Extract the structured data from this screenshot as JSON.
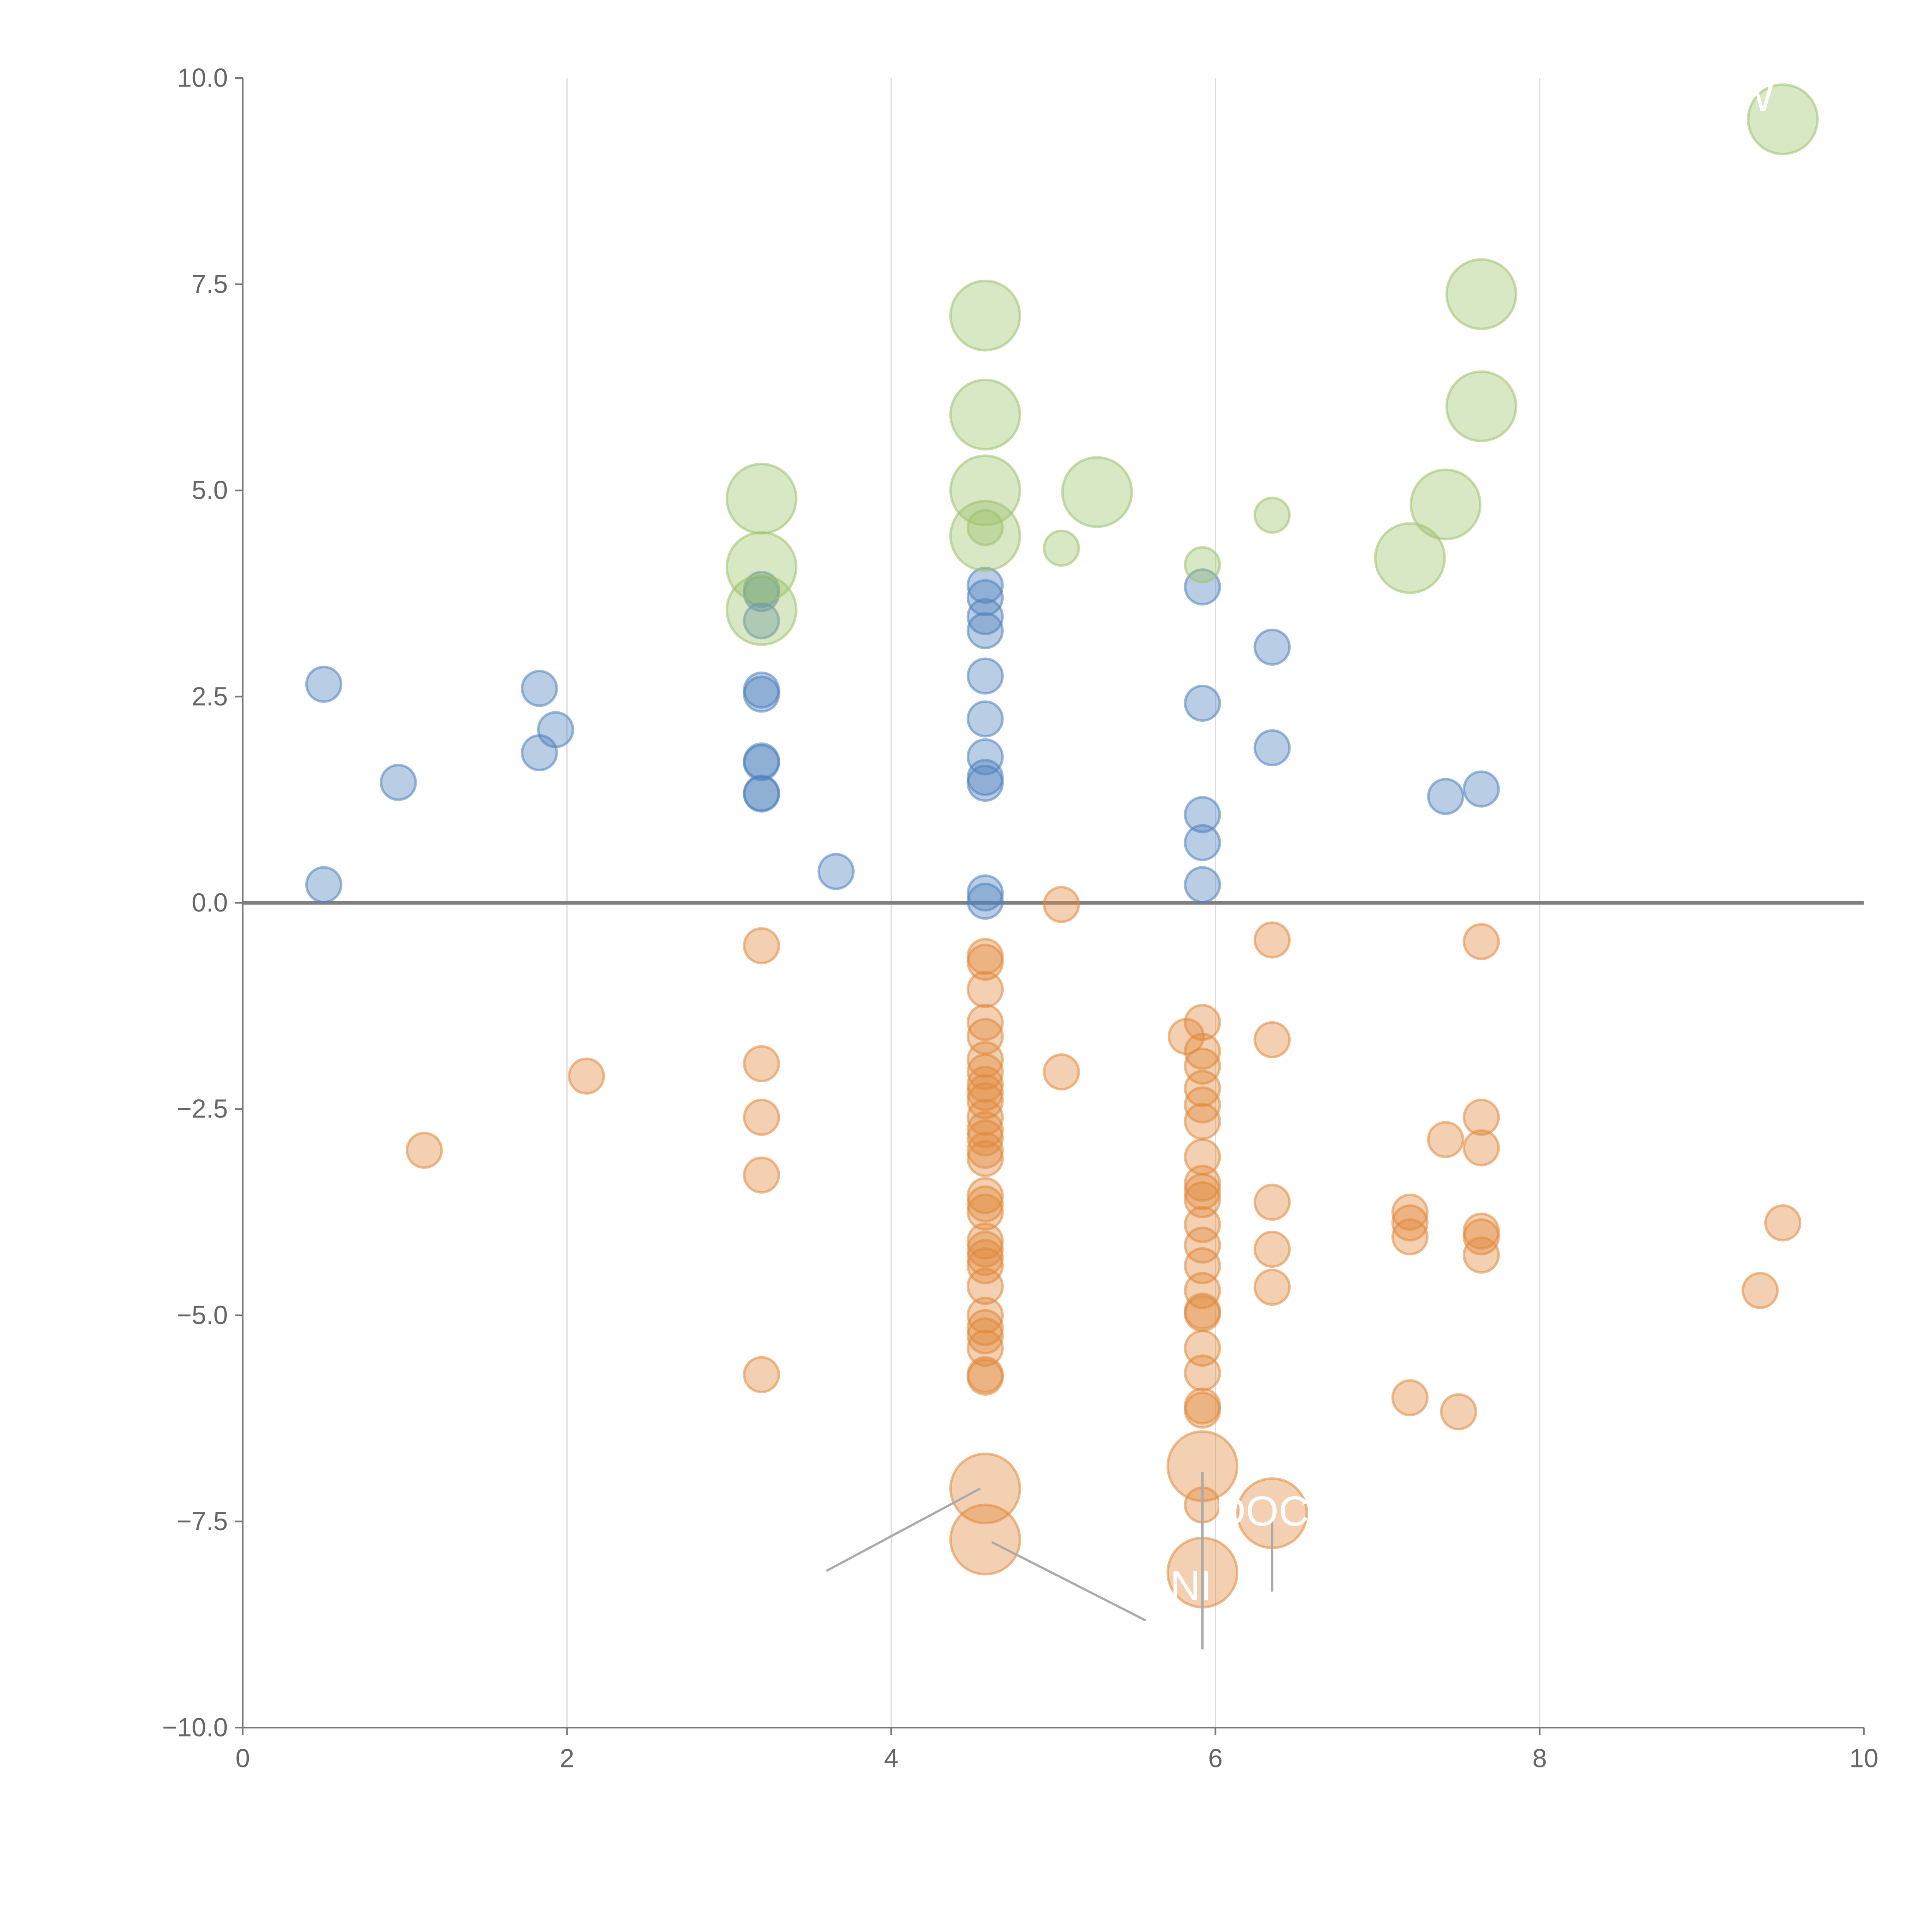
{
  "chart_data": {
    "type": "scatter",
    "title": "",
    "xlabel": "",
    "ylabel": "",
    "xlim": [
      0,
      10
    ],
    "ylim": [
      -10,
      10
    ],
    "grid": {
      "vertical": true,
      "horizontal": false
    },
    "xticks": [
      0,
      2,
      4,
      6,
      8,
      10
    ],
    "yticks": [
      10.0,
      7.5,
      5.0,
      2.5,
      0.0,
      -2.5,
      -5.0,
      -7.5,
      -10.0
    ],
    "xtick_labels": [
      "0",
      "2",
      "4",
      "6",
      "8",
      "10"
    ],
    "ytick_labels": [
      "10.0",
      "7.5",
      "5.0",
      "2.5",
      "0.0",
      "−2.5",
      "−5.0",
      "−7.5",
      "−10.0"
    ],
    "reference_line_y": 0,
    "series": [
      {
        "name": "blue",
        "color": "#4f81bd",
        "points": [
          [
            0.5,
            2.65,
            1
          ],
          [
            0.5,
            0.22,
            1
          ],
          [
            0.96,
            1.46,
            1
          ],
          [
            1.83,
            2.6,
            1
          ],
          [
            1.83,
            1.82,
            1
          ],
          [
            1.93,
            2.1,
            1
          ],
          [
            3.2,
            3.8,
            1
          ],
          [
            3.2,
            3.75,
            1
          ],
          [
            3.2,
            3.42,
            1
          ],
          [
            3.2,
            2.58,
            1
          ],
          [
            3.2,
            2.53,
            1
          ],
          [
            3.2,
            1.72,
            1
          ],
          [
            3.2,
            1.7,
            1
          ],
          [
            3.2,
            1.33,
            1
          ],
          [
            3.2,
            1.32,
            1
          ],
          [
            3.66,
            0.38,
            1
          ],
          [
            4.58,
            3.85,
            1
          ],
          [
            4.58,
            3.7,
            1
          ],
          [
            4.58,
            3.47,
            1
          ],
          [
            4.58,
            3.3,
            1
          ],
          [
            4.58,
            2.75,
            1
          ],
          [
            4.58,
            2.23,
            1
          ],
          [
            4.58,
            1.77,
            1
          ],
          [
            4.58,
            1.52,
            1
          ],
          [
            4.58,
            1.45,
            1
          ],
          [
            4.58,
            0.12,
            1
          ],
          [
            4.58,
            0.02,
            1
          ],
          [
            5.92,
            3.83,
            1
          ],
          [
            5.92,
            2.42,
            1
          ],
          [
            5.92,
            1.07,
            1
          ],
          [
            5.92,
            0.73,
            1
          ],
          [
            5.92,
            0.22,
            1
          ],
          [
            6.35,
            3.1,
            1
          ],
          [
            6.35,
            1.88,
            1
          ],
          [
            7.42,
            1.29,
            1
          ],
          [
            7.64,
            1.38,
            1
          ]
        ]
      },
      {
        "name": "green",
        "color": "#9dc36b",
        "points": [
          [
            3.2,
            4.9,
            4
          ],
          [
            3.2,
            4.07,
            4
          ],
          [
            3.2,
            3.55,
            4
          ],
          [
            4.58,
            7.12,
            4
          ],
          [
            4.58,
            5.92,
            4
          ],
          [
            4.58,
            5.0,
            4
          ],
          [
            4.58,
            4.45,
            4
          ],
          [
            5.27,
            4.98,
            4
          ],
          [
            7.64,
            7.38,
            4
          ],
          [
            7.64,
            6.02,
            4
          ],
          [
            7.42,
            4.83,
            4
          ],
          [
            7.2,
            4.18,
            4
          ],
          [
            9.5,
            9.5,
            4
          ],
          [
            4.58,
            4.55,
            1
          ],
          [
            5.05,
            4.3,
            1
          ],
          [
            5.92,
            4.1,
            1
          ],
          [
            6.35,
            4.7,
            1
          ]
        ]
      },
      {
        "name": "orange",
        "color": "#e0893c",
        "points": [
          [
            1.12,
            -3.0,
            1
          ],
          [
            2.12,
            -2.1,
            1
          ],
          [
            3.2,
            -0.52,
            1
          ],
          [
            3.2,
            -1.95,
            1
          ],
          [
            3.2,
            -2.6,
            1
          ],
          [
            3.2,
            -3.3,
            1
          ],
          [
            3.2,
            -5.72,
            1
          ],
          [
            4.58,
            -0.65,
            1
          ],
          [
            4.58,
            -0.72,
            1
          ],
          [
            4.58,
            -1.05,
            1
          ],
          [
            4.58,
            -1.45,
            1
          ],
          [
            4.58,
            -1.62,
            1
          ],
          [
            4.58,
            -1.9,
            1
          ],
          [
            4.58,
            -2.05,
            1
          ],
          [
            4.58,
            -2.2,
            1
          ],
          [
            4.58,
            -2.3,
            1
          ],
          [
            4.58,
            -2.4,
            1
          ],
          [
            4.58,
            -2.6,
            1
          ],
          [
            4.58,
            -2.75,
            1
          ],
          [
            4.58,
            -2.85,
            1
          ],
          [
            4.58,
            -3.0,
            1
          ],
          [
            4.58,
            -3.1,
            1
          ],
          [
            4.58,
            -3.55,
            1
          ],
          [
            4.58,
            -3.65,
            1
          ],
          [
            4.58,
            -3.75,
            1
          ],
          [
            4.58,
            -4.1,
            1
          ],
          [
            4.58,
            -4.2,
            1
          ],
          [
            4.58,
            -4.3,
            1
          ],
          [
            4.58,
            -4.4,
            1
          ],
          [
            4.58,
            -4.65,
            1
          ],
          [
            4.58,
            -5.0,
            1
          ],
          [
            4.58,
            -5.15,
            1
          ],
          [
            4.58,
            -5.25,
            1
          ],
          [
            4.58,
            -5.4,
            1
          ],
          [
            4.58,
            -5.72,
            1
          ],
          [
            4.58,
            -5.75,
            1
          ],
          [
            5.05,
            -0.02,
            1
          ],
          [
            5.05,
            -2.05,
            1
          ],
          [
            5.82,
            -1.62,
            1
          ],
          [
            5.92,
            -1.45,
            1
          ],
          [
            5.92,
            -1.8,
            1
          ],
          [
            5.92,
            -1.98,
            1
          ],
          [
            5.92,
            -2.25,
            1
          ],
          [
            5.92,
            -2.45,
            1
          ],
          [
            5.92,
            -2.65,
            1
          ],
          [
            5.92,
            -3.08,
            1
          ],
          [
            5.92,
            -3.4,
            1
          ],
          [
            5.92,
            -3.5,
            1
          ],
          [
            5.92,
            -3.6,
            1
          ],
          [
            5.92,
            -3.9,
            1
          ],
          [
            5.92,
            -4.15,
            1
          ],
          [
            5.92,
            -4.4,
            1
          ],
          [
            5.92,
            -4.7,
            1
          ],
          [
            5.92,
            -4.95,
            1
          ],
          [
            5.92,
            -4.98,
            1
          ],
          [
            5.92,
            -5.4,
            1
          ],
          [
            5.92,
            -5.7,
            1
          ],
          [
            5.92,
            -6.1,
            1
          ],
          [
            5.92,
            -6.15,
            1
          ],
          [
            5.92,
            -7.3,
            1
          ],
          [
            6.35,
            -0.45,
            1
          ],
          [
            6.35,
            -1.66,
            1
          ],
          [
            6.35,
            -3.63,
            1
          ],
          [
            6.35,
            -4.2,
            1
          ],
          [
            6.35,
            -4.66,
            1
          ],
          [
            7.2,
            -3.75,
            1
          ],
          [
            7.2,
            -3.88,
            1
          ],
          [
            7.2,
            -4.05,
            1
          ],
          [
            7.2,
            -6.0,
            1
          ],
          [
            7.42,
            -2.87,
            1
          ],
          [
            7.5,
            -6.17,
            1
          ],
          [
            7.64,
            -0.47,
            1
          ],
          [
            7.64,
            -2.6,
            1
          ],
          [
            7.64,
            -2.97,
            1
          ],
          [
            7.64,
            -3.98,
            1
          ],
          [
            7.64,
            -4.05,
            1
          ],
          [
            7.64,
            -4.27,
            1
          ],
          [
            9.36,
            -4.7,
            1
          ],
          [
            9.5,
            -3.88,
            1
          ],
          [
            4.58,
            -7.1,
            4
          ],
          [
            4.58,
            -7.72,
            4
          ],
          [
            5.92,
            -6.83,
            4
          ],
          [
            5.92,
            -8.12,
            4
          ],
          [
            6.35,
            -7.4,
            4
          ]
        ]
      }
    ],
    "annotations": [
      {
        "text": "DOC",
        "x": 6.0,
        "y": -7.55,
        "line": [
          [
            6.35,
            -7.5
          ],
          [
            6.35,
            -8.35
          ]
        ]
      },
      {
        "text": "NI",
        "x": 5.72,
        "y": -8.45,
        "line": [
          [
            5.92,
            -6.9
          ],
          [
            5.92,
            -9.05
          ]
        ]
      },
      {
        "text": "W",
        "x": 9.2,
        "y": 9.6,
        "line": null
      },
      {
        "text": "",
        "x": 3.6,
        "y": -8.1,
        "line": [
          [
            4.55,
            -7.1
          ],
          [
            3.6,
            -8.1
          ]
        ]
      },
      {
        "text": "",
        "x": 5.57,
        "y": -8.7,
        "line": [
          [
            4.62,
            -7.75
          ],
          [
            5.57,
            -8.7
          ]
        ]
      }
    ]
  }
}
